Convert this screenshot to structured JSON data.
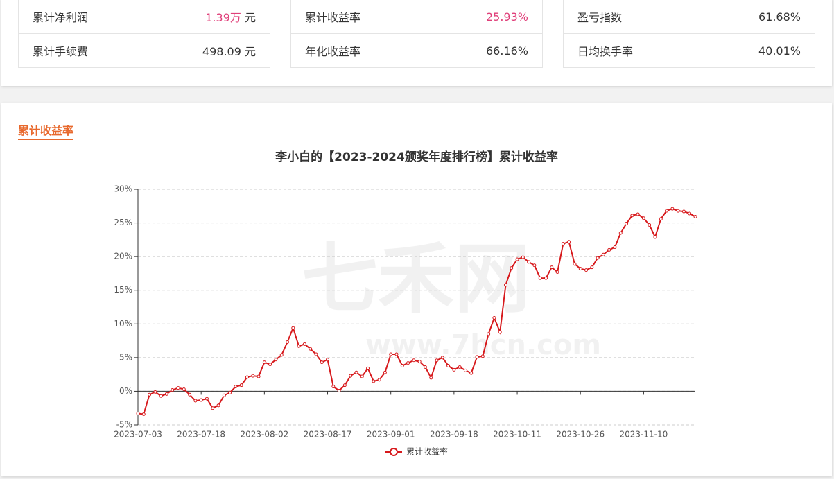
{
  "stats": [
    [
      {
        "label": "累计净利润",
        "value": "1.39万",
        "unit": "元",
        "highlight": true
      },
      {
        "label": "累计手续费",
        "value": "498.09",
        "unit": "元",
        "highlight": false
      }
    ],
    [
      {
        "label": "累计收益率",
        "value": "25.93%",
        "highlight": true
      },
      {
        "label": "年化收益率",
        "value": "66.16%",
        "highlight": false
      }
    ],
    [
      {
        "label": "盈亏指数",
        "value": "61.68%",
        "highlight": false
      },
      {
        "label": "日均换手率",
        "value": "40.01%",
        "highlight": false
      }
    ]
  ],
  "section_title": "累计收益率",
  "watermark": {
    "name": "七禾网",
    "url": "www.7hcn.com"
  },
  "chart_data": {
    "type": "line",
    "title": "李小白的【2023-2024颁奖年度排行榜】累计收益率",
    "categories": [
      "2023-07-03",
      null,
      null,
      null,
      null,
      null,
      null,
      null,
      null,
      null,
      null,
      "2023-07-18",
      null,
      null,
      null,
      null,
      null,
      null,
      null,
      null,
      null,
      null,
      "2023-08-02",
      null,
      null,
      null,
      null,
      null,
      null,
      null,
      null,
      null,
      null,
      "2023-08-17",
      null,
      null,
      null,
      null,
      null,
      null,
      null,
      null,
      null,
      null,
      "2023-09-01",
      null,
      null,
      null,
      null,
      null,
      null,
      null,
      null,
      null,
      null,
      "2023-09-18",
      null,
      null,
      null,
      null,
      null,
      null,
      null,
      null,
      null,
      null,
      "2023-10-11",
      null,
      null,
      null,
      null,
      null,
      null,
      null,
      null,
      null,
      null,
      "2023-10-26",
      null,
      null,
      null,
      null,
      null,
      null,
      null,
      null,
      null,
      null,
      "2023-11-10",
      null,
      null,
      null,
      null,
      null,
      null,
      null,
      null,
      null
    ],
    "series": [
      {
        "name": "累计收益率",
        "color": "#d7191c",
        "values": [
          -3.3,
          -3.4,
          -0.5,
          -0.1,
          -0.7,
          -0.4,
          0.2,
          0.5,
          0.3,
          -0.5,
          -1.4,
          -1.3,
          -1.1,
          -2.5,
          -2.1,
          -0.6,
          -0.2,
          0.7,
          0.9,
          2.1,
          2.3,
          2.2,
          4.3,
          4.0,
          4.7,
          5.4,
          7.3,
          9.4,
          6.7,
          7.0,
          6.3,
          5.5,
          4.3,
          4.7,
          0.7,
          0.1,
          0.9,
          2.3,
          2.8,
          2.2,
          3.4,
          1.5,
          1.7,
          2.8,
          5.5,
          5.5,
          3.8,
          4.2,
          4.6,
          4.4,
          3.6,
          2.0,
          4.6,
          5.0,
          3.8,
          3.2,
          3.6,
          3.1,
          2.7,
          5.1,
          5.2,
          8.5,
          10.9,
          8.8,
          15.8,
          18.3,
          19.6,
          19.9,
          19.2,
          18.7,
          16.8,
          16.8,
          18.4,
          17.7,
          21.9,
          22.2,
          18.9,
          18.2,
          18.0,
          18.4,
          19.8,
          20.3,
          21.0,
          21.4,
          23.5,
          24.9,
          26.1,
          26.3,
          25.7,
          24.7,
          22.9,
          25.6,
          26.8,
          27.1,
          26.8,
          26.7,
          26.4,
          25.93
        ]
      }
    ],
    "ylim": [
      -5,
      30
    ],
    "yticks": [
      {
        "value": -5,
        "label": "-5%"
      },
      {
        "value": 0,
        "label": "0%"
      },
      {
        "value": 5,
        "label": "5%"
      },
      {
        "value": 10,
        "label": "10%"
      },
      {
        "value": 15,
        "label": "15%"
      },
      {
        "value": 20,
        "label": "20%"
      },
      {
        "value": 25,
        "label": "25%"
      },
      {
        "value": 30,
        "label": "30%"
      }
    ],
    "grid": true
  }
}
